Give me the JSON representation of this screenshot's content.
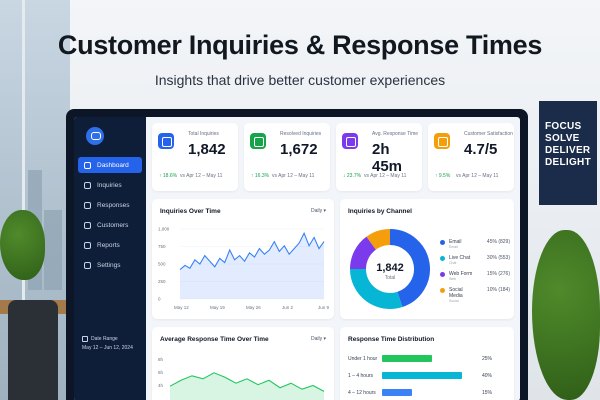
{
  "headline": "Customer Inquiries & Response Times",
  "subline": "Insights that drive better customer experiences",
  "poster": {
    "lines": [
      "FOCUS",
      "SOLVE",
      "DELIVER",
      "DELIGHT"
    ]
  },
  "sidebar": {
    "items": [
      {
        "label": "Dashboard",
        "icon": "dashboard-icon",
        "active": true
      },
      {
        "label": "Inquiries",
        "icon": "inbox-icon",
        "active": false
      },
      {
        "label": "Responses",
        "icon": "reply-icon",
        "active": false
      },
      {
        "label": "Customers",
        "icon": "users-icon",
        "active": false
      },
      {
        "label": "Reports",
        "icon": "reports-icon",
        "active": false
      },
      {
        "label": "Settings",
        "icon": "gear-icon",
        "active": false
      }
    ],
    "date_range_label": "Date Range",
    "date_range_value": "May 12 – Jun 12, 2024"
  },
  "kpis": [
    {
      "label": "Total Inquiries",
      "value": "1,842",
      "change": "↑ 18.6%",
      "period": "vs Apr 12 – May 11",
      "color": "#2563eb",
      "icon": "chat-icon"
    },
    {
      "label": "Resolved Inquiries",
      "value": "1,672",
      "change": "↑ 16.3%",
      "period": "vs Apr 12 – May 11",
      "color": "#16a34a",
      "icon": "mail-icon"
    },
    {
      "label": "Avg. Response Time",
      "value": "2h 45m",
      "change": "↓ 23.7%",
      "period": "vs Apr 12 – May 11",
      "color": "#7c3aed",
      "icon": "clock-icon"
    },
    {
      "label": "Customer Satisfaction",
      "value": "4.7/5",
      "change": "↑ 9.5%",
      "period": "vs Apr 12 – May 11",
      "color": "#f59e0b",
      "icon": "smile-icon"
    }
  ],
  "inquiries_over_time": {
    "title": "Inquiries Over Time",
    "dropdown": "Daily ▾",
    "chart_data": {
      "type": "area",
      "y_ticks": [
        "1,000",
        "750",
        "500",
        "250",
        "0"
      ],
      "ylim": [
        0,
        1000
      ],
      "x_ticks": [
        "May 12",
        "May 19",
        "May 26",
        "Jun 2",
        "Jun 9"
      ],
      "values": [
        420,
        480,
        440,
        560,
        500,
        620,
        540,
        460,
        580,
        520,
        700,
        560,
        620,
        540,
        660,
        600,
        720,
        640,
        700,
        820,
        680,
        760,
        640,
        720,
        800,
        940,
        760,
        880,
        720,
        820
      ],
      "color": "#3b82f6"
    }
  },
  "inquiries_by_channel": {
    "title": "Inquiries by Channel",
    "center_value": "1,842",
    "center_label": "Total",
    "chart_data": {
      "type": "pie",
      "slices": [
        {
          "name": "Email",
          "sub": "Email",
          "value": 45,
          "label": "45% (829)",
          "color": "#2563eb"
        },
        {
          "name": "Live Chat",
          "sub": "Chat",
          "value": 30,
          "label": "30% (553)",
          "color": "#06b6d4"
        },
        {
          "name": "Web Form",
          "sub": "Web",
          "value": 15,
          "label": "15% (276)",
          "color": "#7c3aed"
        },
        {
          "name": "Social Media",
          "sub": "Social",
          "value": 10,
          "label": "10% (184)",
          "color": "#f59e0b"
        }
      ]
    }
  },
  "avg_response_time": {
    "title": "Average Response Time Over Time",
    "dropdown": "Daily ▾",
    "chart_data": {
      "type": "area",
      "y_ticks": [
        "8h",
        "6h",
        "4h"
      ],
      "ylim": [
        2,
        9
      ],
      "values": [
        4.8,
        5.6,
        6.2,
        5.8,
        6.6,
        6.0,
        5.2,
        5.8,
        5.0,
        5.6,
        4.6,
        5.2,
        4.4,
        4.9,
        4.1
      ],
      "color": "#22c55e"
    }
  },
  "response_time_distribution": {
    "title": "Response Time Distribution",
    "chart_data": {
      "type": "bar",
      "categories": [
        "Under 1 hour",
        "1 – 4 hours",
        "4 – 12 hours"
      ],
      "values": [
        25,
        40,
        15
      ],
      "labels": [
        "25%",
        "40%",
        "15%"
      ],
      "colors": [
        "#22c55e",
        "#06b6d4",
        "#3b82f6"
      ],
      "xlim": [
        0,
        40
      ]
    }
  }
}
